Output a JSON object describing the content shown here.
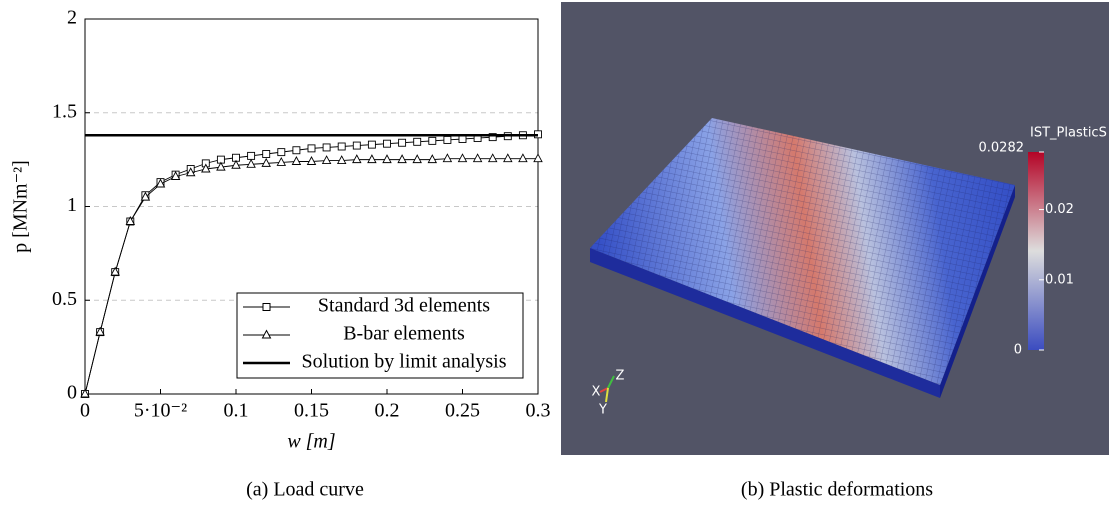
{
  "chart_data": [
    {
      "type": "line",
      "x": [
        0,
        0.01,
        0.02,
        0.03,
        0.04,
        0.05,
        0.06,
        0.07,
        0.08,
        0.09,
        0.1,
        0.11,
        0.12,
        0.13,
        0.14,
        0.15,
        0.16,
        0.17,
        0.18,
        0.19,
        0.2,
        0.21,
        0.22,
        0.23,
        0.24,
        0.25,
        0.26,
        0.27,
        0.28,
        0.29,
        0.3
      ],
      "series": [
        {
          "name": "Standard 3d elements",
          "color": "#000000",
          "marker": "square",
          "values": [
            0,
            0.33,
            0.65,
            0.92,
            1.06,
            1.13,
            1.17,
            1.2,
            1.23,
            1.25,
            1.26,
            1.27,
            1.28,
            1.29,
            1.3,
            1.31,
            1.315,
            1.32,
            1.325,
            1.33,
            1.335,
            1.34,
            1.345,
            1.35,
            1.355,
            1.36,
            1.365,
            1.37,
            1.375,
            1.38,
            1.385
          ]
        },
        {
          "name": "B-bar elements",
          "color": "#000000",
          "marker": "triangle",
          "values": [
            0,
            0.33,
            0.65,
            0.92,
            1.05,
            1.12,
            1.16,
            1.18,
            1.2,
            1.21,
            1.22,
            1.225,
            1.23,
            1.235,
            1.24,
            1.24,
            1.245,
            1.245,
            1.25,
            1.25,
            1.25,
            1.25,
            1.25,
            1.25,
            1.255,
            1.255,
            1.255,
            1.255,
            1.255,
            1.255,
            1.255
          ]
        },
        {
          "name": "Solution by limit analysis",
          "color": "#000000",
          "marker": "none",
          "values": [
            1.38,
            1.38,
            1.38,
            1.38,
            1.38,
            1.38,
            1.38,
            1.38,
            1.38,
            1.38,
            1.38,
            1.38,
            1.38,
            1.38,
            1.38,
            1.38,
            1.38,
            1.38,
            1.38,
            1.38,
            1.38,
            1.38,
            1.38,
            1.38,
            1.38,
            1.38,
            1.38,
            1.38,
            1.38,
            1.38,
            1.38
          ]
        }
      ],
      "xlabel": "w [m]",
      "ylabel": "p [MNm⁻²]",
      "xlim": [
        0,
        0.3
      ],
      "ylim": [
        0,
        2
      ],
      "xticks": [
        0,
        {
          "value": 0.05,
          "label": "5·10⁻²"
        },
        0.1,
        0.15,
        0.2,
        0.25,
        0.3
      ],
      "yticks": [
        0,
        0.5,
        1,
        1.5,
        2
      ],
      "grid": true,
      "legend": "lower right",
      "caption": "(a) Load curve"
    },
    {
      "type": "render",
      "caption": "(b) Plastic deformations",
      "axes_labels": [
        "X",
        "Y",
        "Z"
      ],
      "colorbar": {
        "title": "IST_PlasticS",
        "lim": [
          0,
          0.0282
        ],
        "ticks": [
          0,
          0.01,
          0.02,
          0.0282
        ],
        "colors": [
          "#3b4cc0",
          "#dddddd",
          "#b40426"
        ]
      }
    }
  ]
}
